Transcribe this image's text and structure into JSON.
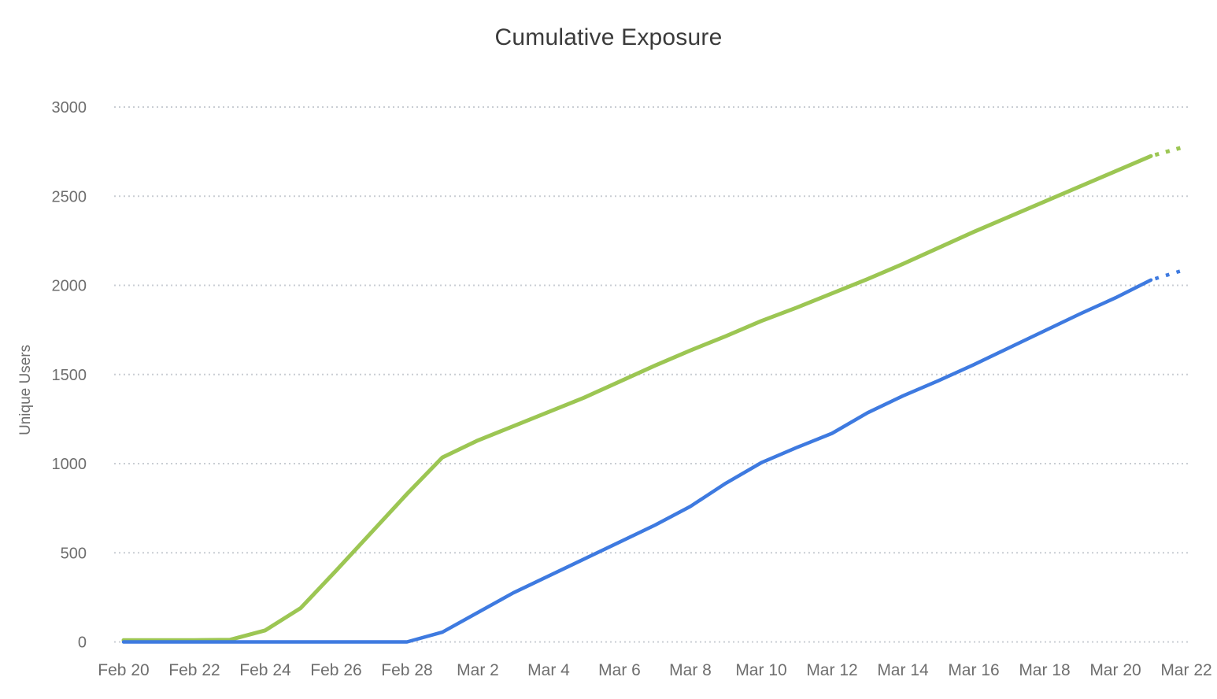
{
  "chart_data": {
    "type": "line",
    "title": "Cumulative Exposure",
    "xlabel": "",
    "ylabel": "Unique Users",
    "ylim": [
      0,
      3000
    ],
    "yticks": [
      0,
      500,
      1000,
      1500,
      2000,
      2500,
      3000
    ],
    "grid": "horizontal-dotted",
    "grid_color": "#c9cdd3",
    "text_color": "#6e6e6e",
    "title_color": "#3b3b3b",
    "legend": "none",
    "x_ticks_shown_every": 2,
    "projection_note": "final segment (Mar 21 to Mar 22) drawn as dotted projection for both series",
    "x": [
      "Feb 20",
      "Feb 21",
      "Feb 22",
      "Feb 23",
      "Feb 24",
      "Feb 25",
      "Feb 26",
      "Feb 27",
      "Feb 28",
      "Mar 1",
      "Mar 2",
      "Mar 3",
      "Mar 4",
      "Mar 5",
      "Mar 6",
      "Mar 7",
      "Mar 8",
      "Mar 9",
      "Mar 10",
      "Mar 11",
      "Mar 12",
      "Mar 13",
      "Mar 14",
      "Mar 15",
      "Mar 16",
      "Mar 17",
      "Mar 18",
      "Mar 19",
      "Mar 20",
      "Mar 21",
      "Mar 22"
    ],
    "x_tick_labels": [
      "Feb 20",
      "Feb 22",
      "Feb 24",
      "Feb 26",
      "Feb 28",
      "Mar 2",
      "Mar 4",
      "Mar 6",
      "Mar 8",
      "Mar 10",
      "Mar 12",
      "Mar 14",
      "Mar 16",
      "Mar 18",
      "Mar 20",
      "Mar 22"
    ],
    "series": [
      {
        "name": "green",
        "color": "#9cc653",
        "stroke_width": 5,
        "projected_last_point": true,
        "values": [
          10,
          10,
          10,
          12,
          65,
          190,
          400,
          615,
          830,
          1035,
          1130,
          1210,
          1290,
          1370,
          1460,
          1550,
          1635,
          1715,
          1800,
          1875,
          1955,
          2035,
          2120,
          2210,
          2300,
          2385,
          2470,
          2555,
          2640,
          2725,
          2780
        ]
      },
      {
        "name": "blue",
        "color": "#3e7ae0",
        "stroke_width": 4.5,
        "projected_last_point": true,
        "values": [
          0,
          0,
          0,
          0,
          0,
          0,
          0,
          0,
          0,
          55,
          165,
          275,
          370,
          465,
          560,
          655,
          760,
          890,
          1005,
          1090,
          1170,
          1285,
          1380,
          1465,
          1555,
          1650,
          1745,
          1840,
          1930,
          2030,
          2090
        ]
      }
    ]
  }
}
